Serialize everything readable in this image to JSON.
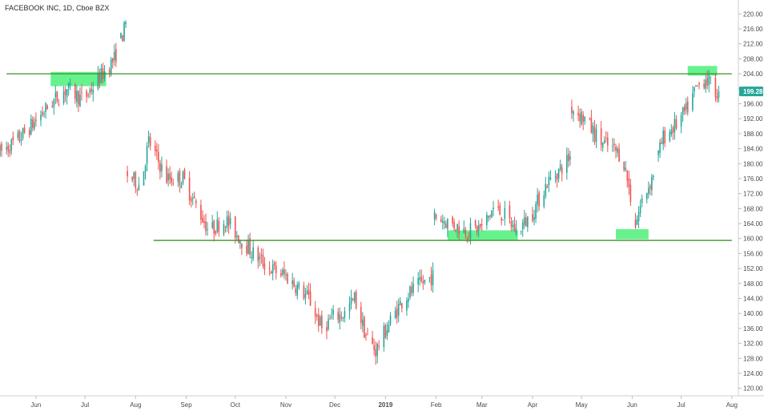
{
  "chart_data": {
    "type": "candlestick",
    "title": "FACEBOOK INC, 1D, Cboe BZX",
    "ylim": [
      118,
      222
    ],
    "y_ticks": [
      120,
      124,
      128,
      132,
      136,
      140,
      144,
      148,
      152,
      156,
      160,
      164,
      168,
      172,
      176,
      180,
      184,
      188,
      192,
      196,
      200,
      204,
      208,
      212,
      216,
      220
    ],
    "y_tick_labels": [
      "120.00",
      "124.00",
      "128.00",
      "132.00",
      "136.00",
      "140.00",
      "144.00",
      "148.00",
      "152.00",
      "156.00",
      "160.00",
      "164.00",
      "168.00",
      "172.00",
      "176.00",
      "180.00",
      "184.00",
      "188.00",
      "192.00",
      "196.00",
      "200.00",
      "204.00",
      "208.00",
      "212.00",
      "216.00",
      "220.00"
    ],
    "x_ticks": [
      {
        "label": "Jun",
        "date": "2018-06-01"
      },
      {
        "label": "Jul",
        "date": "2018-07-01"
      },
      {
        "label": "Aug",
        "date": "2018-08-01"
      },
      {
        "label": "Sep",
        "date": "2018-09-01"
      },
      {
        "label": "Oct",
        "date": "2018-10-01"
      },
      {
        "label": "Nov",
        "date": "2018-11-01"
      },
      {
        "label": "Dec",
        "date": "2018-12-01"
      },
      {
        "label": "2019",
        "date": "2019-01-01",
        "bold": true
      },
      {
        "label": "Feb",
        "date": "2019-02-01"
      },
      {
        "label": "Mar",
        "date": "2019-03-01"
      },
      {
        "label": "Apr",
        "date": "2019-04-01"
      },
      {
        "label": "May",
        "date": "2019-05-01"
      },
      {
        "label": "Jun",
        "date": "2019-06-01"
      },
      {
        "label": "Jul",
        "date": "2019-07-01"
      },
      {
        "label": "Aug",
        "date": "2019-08-01"
      }
    ],
    "date_range": [
      "2018-05-10",
      "2019-08-05"
    ],
    "last_price": {
      "label": "199.28",
      "value": 199.28,
      "color": "#26a69a"
    },
    "colors": {
      "up": "#26a69a",
      "down": "#ef5350",
      "level_line": "#3f8f2a",
      "zone": "#4cf07a"
    },
    "levels": [
      {
        "price": 204,
        "from": "2018-05-14",
        "to": "2019-08-01"
      },
      {
        "price": 159.5,
        "from": "2018-08-12",
        "to": "2019-08-01"
      }
    ],
    "zones": [
      {
        "from": "2018-06-10",
        "to": "2018-07-14",
        "low": 200.7,
        "high": 204.5
      },
      {
        "from": "2019-02-08",
        "to": "2019-03-23",
        "low": 159.5,
        "high": 162.2
      },
      {
        "from": "2019-05-22",
        "to": "2019-06-11",
        "low": 159.8,
        "high": 162.5
      },
      {
        "from": "2019-07-05",
        "to": "2019-07-23",
        "low": 203.5,
        "high": 206.1
      }
    ],
    "trend": [
      [
        "2018-05-10",
        183
      ],
      [
        "2018-05-20",
        186
      ],
      [
        "2018-05-31",
        191
      ],
      [
        "2018-06-10",
        196
      ],
      [
        "2018-06-20",
        200
      ],
      [
        "2018-06-30",
        197
      ],
      [
        "2018-07-10",
        203
      ],
      [
        "2018-07-19",
        208
      ],
      [
        "2018-07-26",
        217
      ],
      [
        "2018-07-27",
        177
      ],
      [
        "2018-08-04",
        174
      ],
      [
        "2018-08-09",
        186
      ],
      [
        "2018-08-20",
        176
      ],
      [
        "2018-08-30",
        176
      ],
      [
        "2018-09-08",
        168
      ],
      [
        "2018-09-15",
        162
      ],
      [
        "2018-09-25",
        165
      ],
      [
        "2018-10-04",
        160
      ],
      [
        "2018-10-12",
        156
      ],
      [
        "2018-10-22",
        152
      ],
      [
        "2018-11-01",
        150
      ],
      [
        "2018-11-08",
        147
      ],
      [
        "2018-11-15",
        144
      ],
      [
        "2018-11-23",
        136
      ],
      [
        "2018-11-30",
        139
      ],
      [
        "2018-12-07",
        140
      ],
      [
        "2018-12-13",
        144
      ],
      [
        "2018-12-20",
        134
      ],
      [
        "2018-12-26",
        130
      ],
      [
        "2019-01-04",
        138
      ],
      [
        "2019-01-12",
        144
      ],
      [
        "2019-01-20",
        147
      ],
      [
        "2019-01-30",
        150
      ],
      [
        "2019-01-31",
        166
      ],
      [
        "2019-02-10",
        164
      ],
      [
        "2019-02-20",
        162
      ],
      [
        "2019-03-01",
        163
      ],
      [
        "2019-03-08",
        168
      ],
      [
        "2019-03-15",
        166
      ],
      [
        "2019-03-22",
        162
      ],
      [
        "2019-03-31",
        166
      ],
      [
        "2019-04-10",
        175
      ],
      [
        "2019-04-17",
        178
      ],
      [
        "2019-04-24",
        182
      ],
      [
        "2019-04-25",
        195
      ],
      [
        "2019-05-03",
        192
      ],
      [
        "2019-05-12",
        186
      ],
      [
        "2019-05-20",
        184
      ],
      [
        "2019-05-26",
        182
      ],
      [
        "2019-05-29",
        176
      ],
      [
        "2019-06-03",
        164
      ],
      [
        "2019-06-07",
        170
      ],
      [
        "2019-06-13",
        176
      ],
      [
        "2019-06-20",
        187
      ],
      [
        "2019-06-27",
        190
      ],
      [
        "2019-07-04",
        194
      ],
      [
        "2019-07-10",
        200
      ],
      [
        "2019-07-16",
        203
      ],
      [
        "2019-07-22",
        199
      ]
    ]
  }
}
